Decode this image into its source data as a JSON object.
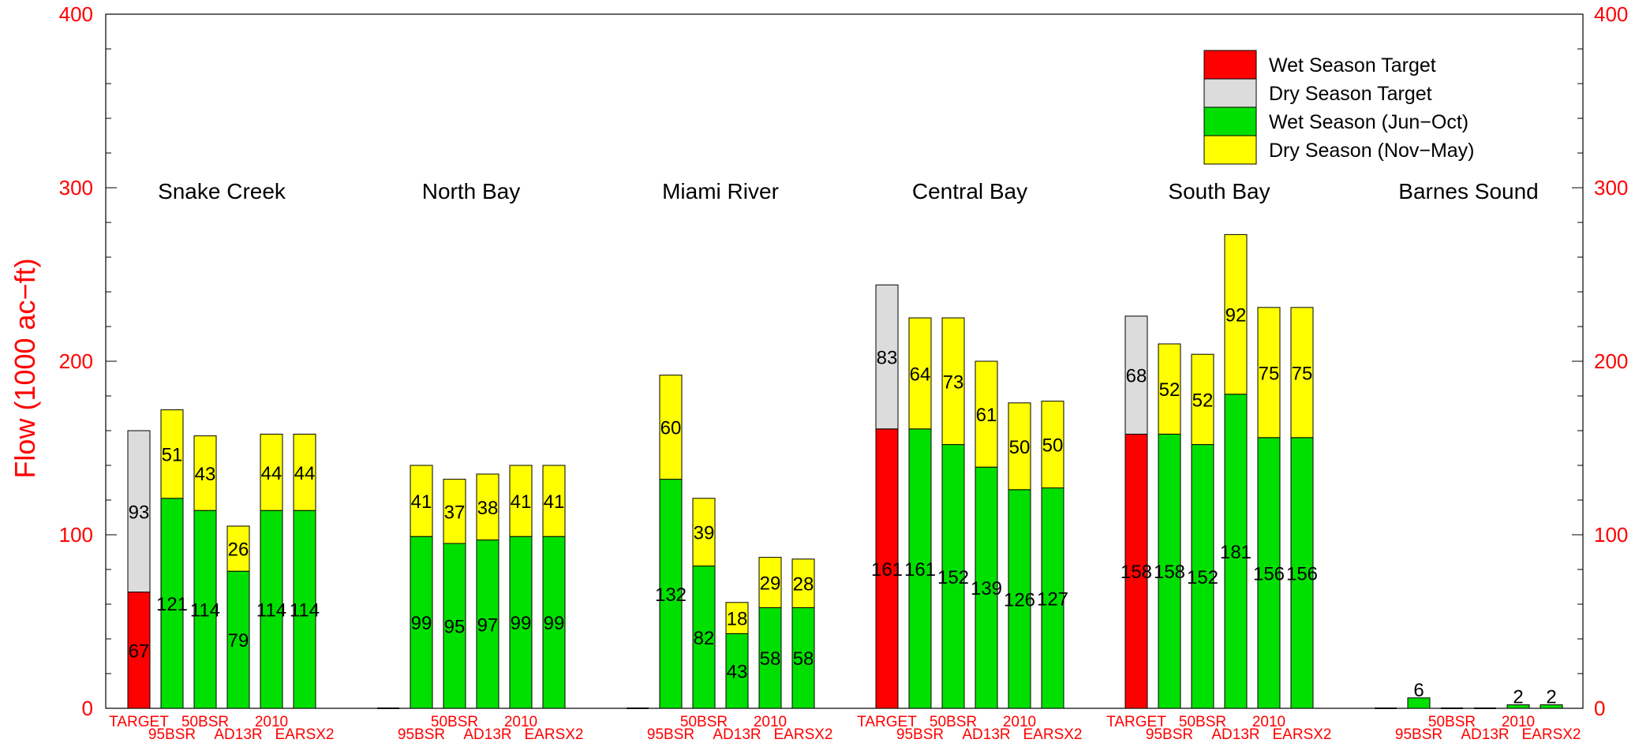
{
  "chart_data": {
    "type": "bar",
    "stacked": true,
    "ylabel": "Flow (1000 ac−ft)",
    "ylim": [
      0,
      400
    ],
    "yticks": [
      0,
      100,
      200,
      300,
      400
    ],
    "grid": false,
    "legend_position": "top-right",
    "colors": {
      "axis_text": "#ff0000",
      "wet_target": "#ff0000",
      "dry_target": "#dcdcdc",
      "wet_season": "#00e000",
      "dry_season": "#ffff00",
      "outline": "#000000"
    },
    "series": [
      {
        "key": "wet_target",
        "name": "Wet Season Target"
      },
      {
        "key": "dry_target",
        "name": "Dry Season Target"
      },
      {
        "key": "wet_season",
        "name": "Wet Season (Jun−Oct)"
      },
      {
        "key": "dry_season",
        "name": "Dry Season (Nov−May)"
      }
    ],
    "categories": [
      "TARGET",
      "95BSR",
      "50BSR",
      "AD13R",
      "2010",
      "EARSX2"
    ],
    "groups": [
      {
        "name": "Snake Creek",
        "bars": [
          {
            "category": "TARGET",
            "type": "target",
            "wet": 67,
            "dry": 93
          },
          {
            "category": "95BSR",
            "type": "scenario",
            "wet": 121,
            "dry": 51
          },
          {
            "category": "50BSR",
            "type": "scenario",
            "wet": 114,
            "dry": 43
          },
          {
            "category": "AD13R",
            "type": "scenario",
            "wet": 79,
            "dry": 26
          },
          {
            "category": "2010",
            "type": "scenario",
            "wet": 114,
            "dry": 44
          },
          {
            "category": "EARSX2",
            "type": "scenario",
            "wet": 114,
            "dry": 44
          }
        ]
      },
      {
        "name": "North Bay",
        "bars": [
          {
            "category": "TARGET",
            "type": "target",
            "wet": 0,
            "dry": 0
          },
          {
            "category": "95BSR",
            "type": "scenario",
            "wet": 99,
            "dry": 41
          },
          {
            "category": "50BSR",
            "type": "scenario",
            "wet": 95,
            "dry": 37
          },
          {
            "category": "AD13R",
            "type": "scenario",
            "wet": 97,
            "dry": 38
          },
          {
            "category": "2010",
            "type": "scenario",
            "wet": 99,
            "dry": 41
          },
          {
            "category": "EARSX2",
            "type": "scenario",
            "wet": 99,
            "dry": 41
          }
        ]
      },
      {
        "name": "Miami River",
        "bars": [
          {
            "category": "TARGET",
            "type": "target",
            "wet": 0,
            "dry": 0
          },
          {
            "category": "95BSR",
            "type": "scenario",
            "wet": 132,
            "dry": 60
          },
          {
            "category": "50BSR",
            "type": "scenario",
            "wet": 82,
            "dry": 39
          },
          {
            "category": "AD13R",
            "type": "scenario",
            "wet": 43,
            "dry": 18
          },
          {
            "category": "2010",
            "type": "scenario",
            "wet": 58,
            "dry": 29
          },
          {
            "category": "EARSX2",
            "type": "scenario",
            "wet": 58,
            "dry": 28
          }
        ]
      },
      {
        "name": "Central Bay",
        "bars": [
          {
            "category": "TARGET",
            "type": "target",
            "wet": 161,
            "dry": 83
          },
          {
            "category": "95BSR",
            "type": "scenario",
            "wet": 161,
            "dry": 64
          },
          {
            "category": "50BSR",
            "type": "scenario",
            "wet": 152,
            "dry": 73
          },
          {
            "category": "AD13R",
            "type": "scenario",
            "wet": 139,
            "dry": 61
          },
          {
            "category": "2010",
            "type": "scenario",
            "wet": 126,
            "dry": 50
          },
          {
            "category": "EARSX2",
            "type": "scenario",
            "wet": 127,
            "dry": 50
          }
        ]
      },
      {
        "name": "South Bay",
        "bars": [
          {
            "category": "TARGET",
            "type": "target",
            "wet": 158,
            "dry": 68
          },
          {
            "category": "95BSR",
            "type": "scenario",
            "wet": 158,
            "dry": 52
          },
          {
            "category": "50BSR",
            "type": "scenario",
            "wet": 152,
            "dry": 52
          },
          {
            "category": "AD13R",
            "type": "scenario",
            "wet": 181,
            "dry": 92
          },
          {
            "category": "2010",
            "type": "scenario",
            "wet": 156,
            "dry": 75
          },
          {
            "category": "EARSX2",
            "type": "scenario",
            "wet": 156,
            "dry": 75
          }
        ]
      },
      {
        "name": "Barnes Sound",
        "bars": [
          {
            "category": "TARGET",
            "type": "target",
            "wet": 0,
            "dry": 0
          },
          {
            "category": "95BSR",
            "type": "scenario",
            "wet": 6,
            "dry": 0
          },
          {
            "category": "50BSR",
            "type": "scenario",
            "wet": 0,
            "dry": 0
          },
          {
            "category": "AD13R",
            "type": "scenario",
            "wet": 0,
            "dry": 0
          },
          {
            "category": "2010",
            "type": "scenario",
            "wet": 2,
            "dry": 0
          },
          {
            "category": "EARSX2",
            "type": "scenario",
            "wet": 2,
            "dry": 0
          }
        ]
      }
    ]
  }
}
